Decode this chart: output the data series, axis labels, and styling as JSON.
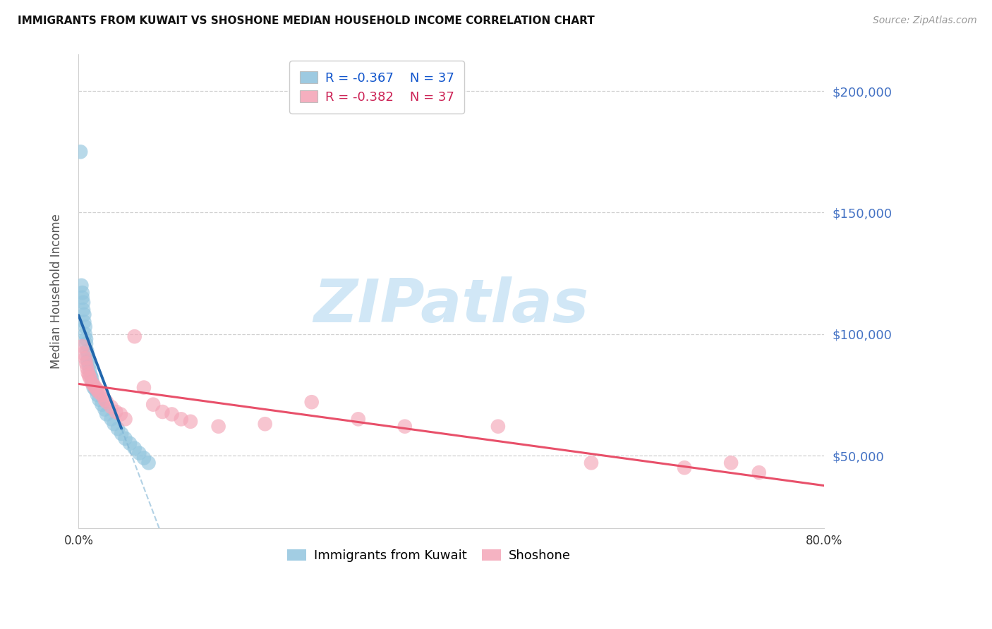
{
  "title": "IMMIGRANTS FROM KUWAIT VS SHOSHONE MEDIAN HOUSEHOLD INCOME CORRELATION CHART",
  "source": "Source: ZipAtlas.com",
  "ylabel": "Median Household Income",
  "ytick_labels": [
    "$50,000",
    "$100,000",
    "$150,000",
    "$200,000"
  ],
  "ytick_values": [
    50000,
    100000,
    150000,
    200000
  ],
  "xlim": [
    0.0,
    0.8
  ],
  "ylim": [
    20000,
    215000
  ],
  "legend_blue_r": "R = -0.367",
  "legend_blue_n": "N = 37",
  "legend_pink_r": "R = -0.382",
  "legend_pink_n": "N = 37",
  "legend_bottom_blue": "Immigrants from Kuwait",
  "legend_bottom_pink": "Shoshone",
  "blue_color": "#92c5de",
  "pink_color": "#f4a6b8",
  "trend_blue_solid_color": "#2166ac",
  "trend_blue_dash_color": "#7fb3d3",
  "trend_pink_color": "#e8506a",
  "watermark_color": "#cce5f5",
  "grid_color": "#d0d0d0",
  "blue_x": [
    0.002,
    0.003,
    0.004,
    0.004,
    0.005,
    0.005,
    0.006,
    0.006,
    0.007,
    0.007,
    0.008,
    0.008,
    0.009,
    0.01,
    0.01,
    0.011,
    0.012,
    0.013,
    0.014,
    0.015,
    0.016,
    0.018,
    0.02,
    0.022,
    0.025,
    0.028,
    0.03,
    0.035,
    0.038,
    0.042,
    0.046,
    0.05,
    0.055,
    0.06,
    0.065,
    0.07,
    0.075
  ],
  "blue_y": [
    175000,
    120000,
    117000,
    115000,
    113000,
    110000,
    108000,
    105000,
    103000,
    100000,
    98000,
    96000,
    93000,
    91000,
    89000,
    87000,
    85000,
    83000,
    82000,
    80000,
    78000,
    77000,
    75000,
    73000,
    71000,
    69000,
    67000,
    65000,
    63000,
    61000,
    59000,
    57000,
    55000,
    53000,
    51000,
    49000,
    47000
  ],
  "pink_x": [
    0.004,
    0.005,
    0.007,
    0.008,
    0.009,
    0.01,
    0.011,
    0.012,
    0.014,
    0.016,
    0.018,
    0.02,
    0.022,
    0.025,
    0.028,
    0.03,
    0.035,
    0.04,
    0.045,
    0.05,
    0.06,
    0.07,
    0.08,
    0.09,
    0.1,
    0.11,
    0.12,
    0.15,
    0.2,
    0.25,
    0.3,
    0.35,
    0.45,
    0.55,
    0.65,
    0.7,
    0.73
  ],
  "pink_y": [
    95000,
    92000,
    90000,
    88000,
    86000,
    84000,
    83000,
    82000,
    80000,
    79000,
    78000,
    77000,
    76000,
    75000,
    73000,
    72000,
    70000,
    68000,
    67000,
    65000,
    99000,
    78000,
    71000,
    68000,
    67000,
    65000,
    64000,
    62000,
    63000,
    72000,
    65000,
    62000,
    62000,
    47000,
    45000,
    47000,
    43000
  ],
  "blue_trend_x0": 0.0,
  "blue_trend_x_solid_end": 0.046,
  "blue_trend_x_dash_end": 0.175,
  "pink_trend_x0": 0.0,
  "pink_trend_x_end": 0.8
}
